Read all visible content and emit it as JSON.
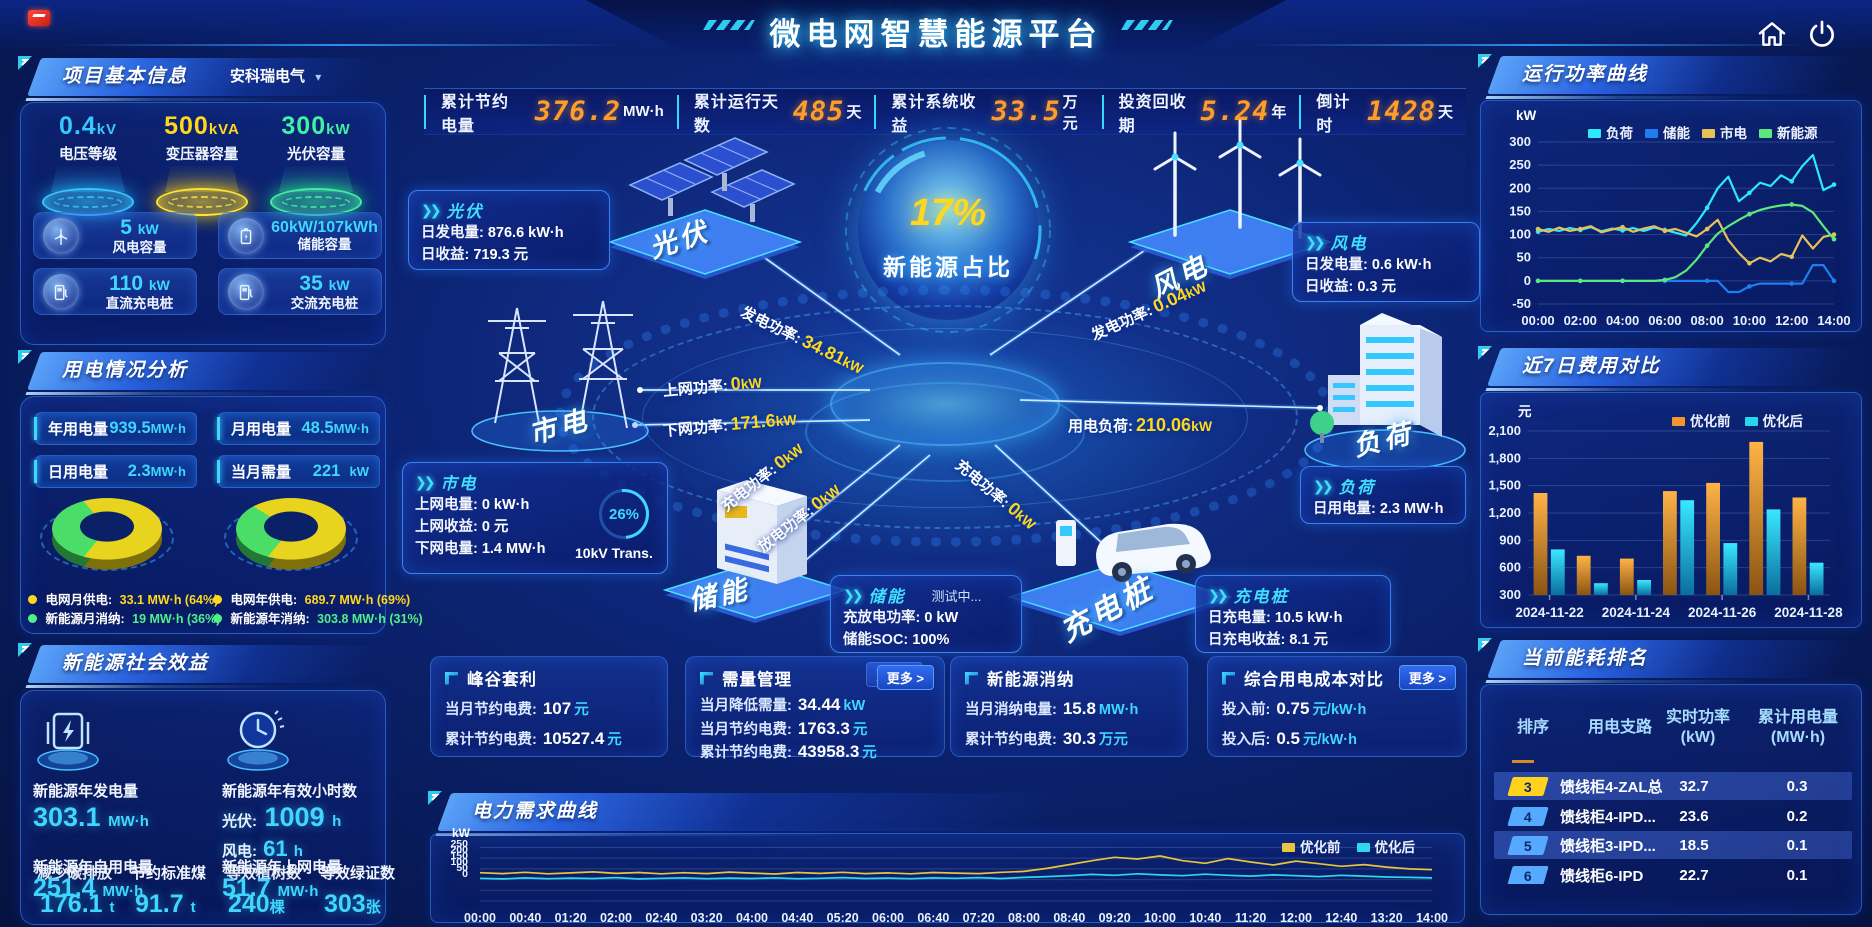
{
  "app": {
    "title": "微电网智慧能源平台"
  },
  "icons": {
    "dropdown": "▾",
    "chevron": "❯❯",
    "home": "home-icon",
    "power": "power-icon"
  },
  "topbar": {
    "stats": [
      {
        "label": "累计节约电量",
        "value": "376.2",
        "unit": "MW·h"
      },
      {
        "label": "累计运行天数",
        "value": "485",
        "unit": "天"
      },
      {
        "label": "累计系统收益",
        "value": "33.5",
        "unit": "万元"
      },
      {
        "label": "投资回收期",
        "value": "5.24",
        "unit": "年"
      },
      {
        "label": "倒计时",
        "value": "1428",
        "unit": "天"
      }
    ]
  },
  "project_info": {
    "title": "项目基本信息",
    "company": "安科瑞电气",
    "spotlights": [
      {
        "value": "0.4",
        "unit": "kV",
        "label": "电压等级",
        "color": "#38c6ff"
      },
      {
        "value": "500",
        "unit": "kVA",
        "label": "变压器容量",
        "color": "#ffd81e"
      },
      {
        "value": "300",
        "unit": "kW",
        "label": "光伏容量",
        "color": "#41f0a5"
      }
    ],
    "cards": [
      {
        "value": "5",
        "unit": "kW",
        "label": "风电容量",
        "icon": "wind-turbine-icon"
      },
      {
        "value": "60kW/107kWh",
        "unit": "",
        "label": "储能容量",
        "icon": "battery-icon"
      },
      {
        "value": "110",
        "unit": "kW",
        "label": "直流充电桩",
        "icon": "dc-charger-icon"
      },
      {
        "value": "35",
        "unit": "kW",
        "label": "交流充电桩",
        "icon": "ac-charger-icon"
      }
    ]
  },
  "usage": {
    "title": "用电情况分析",
    "boxes": [
      {
        "label": "年用电量",
        "value": "939.5",
        "unit": "MW·h"
      },
      {
        "label": "月用电量",
        "value": "48.5",
        "unit": "MW·h"
      },
      {
        "label": "日用电量",
        "value": "2.3",
        "unit": "MW·h"
      },
      {
        "label": "当月需量",
        "value": "221",
        "unit": "kW"
      }
    ],
    "donut_month": {
      "grid_pct": 64,
      "renewable_pct": 36
    },
    "donut_year": {
      "grid_pct": 69,
      "renewable_pct": 31
    },
    "legends": [
      {
        "label": "电网月供电:",
        "value": "33.1 MW·h (64%)",
        "color": "#ffd81e"
      },
      {
        "label": "新能源月消纳:",
        "value": "19 MW·h (36%)",
        "color": "#4ef08a"
      },
      {
        "label": "电网年供电:",
        "value": "689.7 MW·h (69%)",
        "color": "#ffd81e"
      },
      {
        "label": "新能源年消纳:",
        "value": "303.8 MW·h (31%)",
        "color": "#4ef08a"
      }
    ]
  },
  "benefits": {
    "title": "新能源社会效益",
    "gen_label": "新能源年发电量",
    "gen_value": "303.1",
    "gen_unit": "MW·h",
    "hours_label": "新能源年有效小时数",
    "pv_label": "光伏:",
    "pv_value": "1009",
    "pv_unit": "h",
    "wind_label": "风电:",
    "wind_value": "61",
    "wind_unit": "h",
    "self_label": "新能源年自用电量",
    "self_value": "251.4",
    "self_unit": "MW·h",
    "carbon_label": "减少碳排放",
    "carbon_value": "176.1",
    "carbon_unit": "t",
    "coal_label": "节约标准煤",
    "coal_value": "91.7",
    "coal_unit": "t",
    "export_label": "新能源年上网电量",
    "export_value": "51.7",
    "export_unit": "MW·h",
    "trees_label": "等效植树数",
    "trees_value": "240",
    "trees_unit": "棵",
    "certs_label": "等效绿证数",
    "certs_value": "303",
    "certs_unit": "张"
  },
  "diagram": {
    "center_pct": "17%",
    "center_label": "新能源占比",
    "nodes": {
      "pv": "光伏",
      "wind": "风电",
      "grid": "市电",
      "load": "负荷",
      "storage": "储能",
      "charger": "充电桩"
    },
    "flows": [
      {
        "label": "发电功率:",
        "value": "34.81",
        "unit": "kW"
      },
      {
        "label": "发电功率:",
        "value": "0.04",
        "unit": "kW"
      },
      {
        "label": "上网功率:",
        "value": "0",
        "unit": "kW"
      },
      {
        "label": "下网功率:",
        "value": "171.6",
        "unit": "kW"
      },
      {
        "label": "用电负荷:",
        "value": "210.06",
        "unit": "kW"
      },
      {
        "label": "充电功率:",
        "value": "0",
        "unit": "kW"
      },
      {
        "label": "放电功率:",
        "value": "0",
        "unit": "kW"
      },
      {
        "label": "充电功率:",
        "value": "0",
        "unit": "kW"
      }
    ],
    "callouts": {
      "pv": {
        "title": "光伏",
        "rows": [
          {
            "label": "日发电量:",
            "value": "876.6 kW·h"
          },
          {
            "label": "日收益:",
            "value": "719.3 元"
          }
        ]
      },
      "wind": {
        "title": "风电",
        "rows": [
          {
            "label": "日发电量:",
            "value": "0.6 kW·h"
          },
          {
            "label": "日收益:",
            "value": "0.3 元"
          }
        ]
      },
      "grid": {
        "title": "市电",
        "rows": [
          {
            "label": "上网电量:",
            "value": "0 kW·h"
          },
          {
            "label": "上网收益:",
            "value": "0 元"
          },
          {
            "label": "下网电量:",
            "value": "1.4 MW·h"
          }
        ]
      },
      "load": {
        "title": "负荷",
        "rows": [
          {
            "label": "日用电量:",
            "value": "2.3 MW·h"
          }
        ]
      },
      "storage": {
        "title": "储能",
        "badge": "测试中...",
        "rows": [
          {
            "label": "充放电功率:",
            "value": "0 kW"
          },
          {
            "label": "储能SOC:",
            "value": "100%"
          }
        ]
      },
      "charger": {
        "title": "充电桩",
        "rows": [
          {
            "label": "日充电量:",
            "value": "10.5 kW·h"
          },
          {
            "label": "日充电收益:",
            "value": "8.1 元"
          }
        ]
      }
    },
    "gauge": {
      "pct": "26%",
      "label": "10kV Trans."
    },
    "more_label": "更多 >"
  },
  "strategy_cards": [
    {
      "title": "峰谷套利",
      "rows": [
        {
          "label": "当月节约电费:",
          "num": "107",
          "unit": "元"
        },
        {
          "label": "累计节约电费:",
          "num": "10527.4",
          "unit": "元"
        }
      ]
    },
    {
      "title": "需量管理",
      "more": "更多 >",
      "rows": [
        {
          "label": "当月降低需量:",
          "num": "34.44",
          "unit": "kW"
        },
        {
          "label": "当月节约电费:",
          "num": "1763.3",
          "unit": "元"
        },
        {
          "label": "累计节约电费:",
          "num": "43958.3",
          "unit": "元"
        }
      ]
    },
    {
      "title": "新能源消纳",
      "rows": [
        {
          "label": "当月消纳电量:",
          "num": "15.8",
          "unit": "MW·h"
        },
        {
          "label": "累计节约电费:",
          "num": "30.3",
          "unit": "万元"
        }
      ]
    },
    {
      "title": "综合用电成本对比",
      "more": "更多 >",
      "rows": [
        {
          "label": "投入前:",
          "num": "0.75",
          "unit": "元/kW·h"
        },
        {
          "label": "投入后:",
          "num": "0.5",
          "unit": "元/kW·h"
        }
      ]
    }
  ],
  "panel_titles": {
    "power_curve": "运行功率曲线",
    "cost_compare": "近7日费用对比",
    "ranking": "当前能耗排名",
    "demand_curve": "电力需求曲线"
  },
  "ranking": {
    "headers": [
      {
        "l1": "排序",
        "l2": ""
      },
      {
        "l1": "用电支路",
        "l2": ""
      },
      {
        "l1": "实时功率",
        "l2": "(kW)"
      },
      {
        "l1": "累计用电量",
        "l2": "(MW·h)"
      }
    ],
    "rows": [
      {
        "rank": "3",
        "badge": "#ffd21e",
        "name": "馈线柜4-ZAL总",
        "power": "32.7",
        "energy": "0.3"
      },
      {
        "rank": "4",
        "badge": "#55aaff",
        "name": "馈线柜4-IPD...",
        "power": "23.6",
        "energy": "0.2"
      },
      {
        "rank": "5",
        "badge": "#55aaff",
        "name": "馈线柜3-IPD...",
        "power": "18.5",
        "energy": "0.1"
      },
      {
        "rank": "6",
        "badge": "#55aaff",
        "name": "馈线柜6-IPD",
        "power": "22.7",
        "energy": "0.1"
      }
    ]
  },
  "chart_data": [
    {
      "id": "power_curve",
      "type": "line",
      "title": "运行功率曲线",
      "ylabel": "kW",
      "ylim": [
        -50,
        300
      ],
      "yticks": [
        "300",
        "250",
        "200",
        "150",
        "100",
        "50",
        "0",
        "-50"
      ],
      "xticks": [
        "00:00",
        "02:00",
        "04:00",
        "06:00",
        "08:00",
        "10:00",
        "12:00",
        "14:00"
      ],
      "x_hours_step": 0.5,
      "legend_position": "top",
      "series": [
        {
          "name": "负荷",
          "color": "#2de8f8",
          "values": [
            106,
            112,
            108,
            114,
            110,
            116,
            107,
            113,
            109,
            114,
            108,
            115,
            110,
            104,
            98,
            125,
            158,
            200,
            225,
            172,
            190,
            212,
            205,
            228,
            215,
            248,
            272,
            196,
            208
          ]
        },
        {
          "name": "储能",
          "color": "#1f7df0",
          "values": [
            0,
            0,
            0,
            0,
            0,
            0,
            0,
            0,
            0,
            0,
            0,
            0,
            0,
            0,
            0,
            0,
            0,
            0,
            -24,
            -24,
            -12,
            -6,
            -6,
            -6,
            -6,
            -6,
            34,
            34,
            0
          ]
        },
        {
          "name": "市电",
          "color": "#e5c258",
          "values": [
            112,
            106,
            115,
            108,
            112,
            118,
            105,
            111,
            116,
            106,
            113,
            118,
            108,
            112,
            104,
            96,
            112,
            132,
            88,
            60,
            38,
            50,
            42,
            58,
            52,
            98,
            70,
            95,
            100
          ]
        },
        {
          "name": "新能源",
          "color": "#5ce87e",
          "values": [
            0,
            0,
            0,
            0,
            0,
            0,
            0,
            0,
            0,
            0,
            0,
            0,
            2,
            8,
            22,
            46,
            76,
            102,
            118,
            132,
            144,
            153,
            159,
            163,
            165,
            162,
            148,
            118,
            90
          ]
        }
      ]
    },
    {
      "id": "cost_compare",
      "type": "bar",
      "title": "近7日费用对比",
      "ylabel": "元",
      "ylim": [
        300,
        2100
      ],
      "yticks": [
        "2,100",
        "1,800",
        "1,500",
        "1,200",
        "900",
        "600",
        "300"
      ],
      "categories": [
        "2024-11-22",
        "2024-11-23",
        "2024-11-24",
        "2024-11-25",
        "2024-11-26",
        "2024-11-27",
        "2024-11-28"
      ],
      "visible_xticks": [
        "2024-11-22",
        "2024-11-24",
        "2024-11-26",
        "2024-11-28"
      ],
      "legend_position": "top-right",
      "series": [
        {
          "name": "优化前",
          "color": "#f5952d",
          "values": [
            1420,
            730,
            700,
            1440,
            1530,
            1980,
            1370
          ]
        },
        {
          "name": "优化后",
          "color": "#25d8f0",
          "values": [
            800,
            430,
            465,
            1340,
            870,
            1240,
            655
          ]
        }
      ]
    },
    {
      "id": "demand_curve",
      "type": "line",
      "title": "电力需求曲线",
      "ylabel": "kW",
      "ylim": [
        0,
        280
      ],
      "yticks": [
        "250",
        "200",
        "150",
        "100",
        "50",
        "0"
      ],
      "xticks": [
        "00:00",
        "00:40",
        "01:20",
        "02:00",
        "02:40",
        "03:20",
        "04:00",
        "04:40",
        "05:20",
        "06:00",
        "06:40",
        "07:20",
        "08:00",
        "08:40",
        "09:20",
        "10:00",
        "10:40",
        "11:20",
        "12:00",
        "12:40",
        "13:20",
        "14:00"
      ],
      "legend_position": "top-right",
      "series": [
        {
          "name": "优化前",
          "color": "#e8c53a",
          "values": [
            132,
            128,
            134,
            127,
            131,
            136,
            129,
            133,
            127,
            132,
            128,
            135,
            130,
            126,
            133,
            129,
            134,
            128,
            131,
            127,
            133,
            130,
            128,
            134,
            138,
            152,
            170,
            188,
            204,
            196,
            210,
            188,
            176,
            198,
            182,
            168,
            186,
            174,
            162,
            170,
            158,
            150,
            146
          ]
        },
        {
          "name": "优化后",
          "color": "#2bd9ea",
          "values": [
            106,
            103,
            108,
            104,
            107,
            105,
            109,
            103,
            106,
            108,
            104,
            107,
            105,
            108,
            104,
            106,
            109,
            105,
            107,
            104,
            108,
            106,
            109,
            105,
            110,
            114,
            118,
            124,
            120,
            127,
            122,
            118,
            125,
            120,
            116,
            122,
            118,
            114,
            120,
            116,
            112,
            110,
            108
          ]
        }
      ]
    }
  ]
}
